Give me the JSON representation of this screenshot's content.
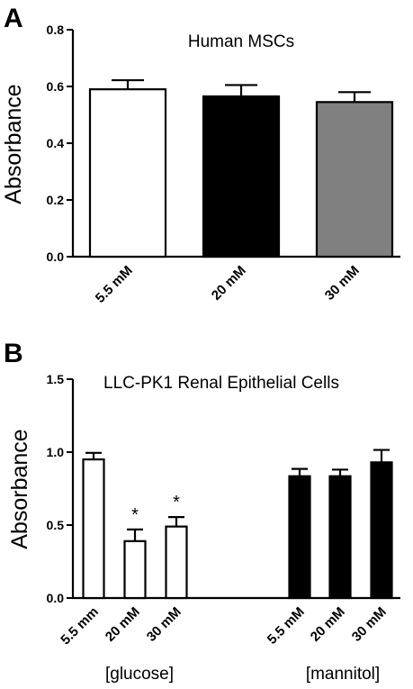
{
  "chart_data": [
    {
      "panel": "A",
      "type": "bar",
      "title": "Human MSCs",
      "ylabel": "Absorbance",
      "ylim": [
        0,
        0.8
      ],
      "yticks": [
        "0.0",
        "0.2",
        "0.4",
        "0.6",
        "0.8"
      ],
      "categories": [
        "5.5 mM",
        "20 mM",
        "30 mM"
      ],
      "values": [
        0.59,
        0.565,
        0.545
      ],
      "errors": [
        0.032,
        0.04,
        0.035
      ],
      "colors": [
        "#ffffff",
        "#000000",
        "#808080"
      ]
    },
    {
      "panel": "B",
      "type": "bar",
      "title": "LLC-PK1 Renal Epithelial Cells",
      "ylabel": "Absorbance",
      "ylim": [
        0,
        1.5
      ],
      "yticks": [
        "0.0",
        "0.5",
        "1.0",
        "1.5"
      ],
      "categories": [
        "5.5 mm",
        "20 mM",
        "30 mM",
        "5.5 mM",
        "20 mM",
        "30 mM"
      ],
      "values": [
        0.95,
        0.39,
        0.49,
        0.835,
        0.835,
        0.93
      ],
      "errors": [
        0.045,
        0.08,
        0.065,
        0.05,
        0.045,
        0.085
      ],
      "colors": [
        "#ffffff",
        "#ffffff",
        "#ffffff",
        "#000000",
        "#000000",
        "#000000"
      ],
      "annotations": [
        "",
        "*",
        "*",
        "",
        "",
        ""
      ],
      "groups": [
        {
          "label": "[glucose]",
          "indices": [
            0,
            1,
            2
          ]
        },
        {
          "label": "[mannitol]",
          "indices": [
            3,
            4,
            5
          ]
        }
      ]
    }
  ]
}
